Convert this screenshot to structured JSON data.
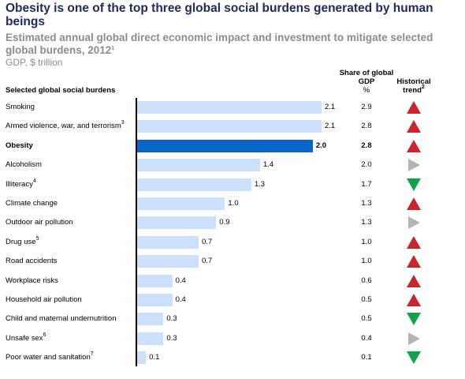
{
  "header": {
    "title": "Obesity is one of the top three global social burdens generated by human beings",
    "subtitle": "Estimated annual global direct economic impact and investment to mitigate selected global burdens, 2012",
    "subtitle_note": "1",
    "units": "GDP, $ trillion",
    "category_header": "Selected global social burdens",
    "share_header": "Share of global GDP",
    "share_unit": "%",
    "trend_header": "Historical trend",
    "trend_note": "2"
  },
  "colors": {
    "bar": "#cce0fb",
    "bar_highlight": "#0a65c8",
    "trend_up": "#c9252c",
    "trend_down": "#0fa24b",
    "trend_flat": "#b4b4b4"
  },
  "chart_data": {
    "type": "bar",
    "orientation": "horizontal",
    "xlim": [
      0,
      2.1
    ],
    "categories": [
      {
        "label": "Smoking",
        "note": "",
        "value_label": "2.1",
        "share_label": "2.9",
        "trend": "up"
      },
      {
        "label": "Armed violence, war, and terrorism",
        "note": "3",
        "value_label": "2.1",
        "share_label": "2.8",
        "trend": "up"
      },
      {
        "label": "Obesity",
        "note": "",
        "value_label": "2.0",
        "share_label": "2.8",
        "trend": "up",
        "highlight": true
      },
      {
        "label": "Alcoholism",
        "note": "",
        "value_label": "1.4",
        "share_label": "2.0",
        "trend": "flat"
      },
      {
        "label": "Illiteracy",
        "note": "4",
        "value_label": "1.3",
        "share_label": "1.7",
        "trend": "down"
      },
      {
        "label": "Climate change",
        "note": "",
        "value_label": "1.0",
        "share_label": "1.3",
        "trend": "up"
      },
      {
        "label": "Outdoor air pollution",
        "note": "",
        "value_label": "0.9",
        "share_label": "1.3",
        "trend": "flat"
      },
      {
        "label": "Drug use",
        "note": "5",
        "value_label": "0.7",
        "share_label": "1.0",
        "trend": "up"
      },
      {
        "label": "Road accidents",
        "note": "",
        "value_label": "0.7",
        "share_label": "1.0",
        "trend": "up"
      },
      {
        "label": "Workplace risks",
        "note": "",
        "value_label": "0.4",
        "share_label": "0.6",
        "trend": "up"
      },
      {
        "label": "Household air pollution",
        "note": "",
        "value_label": "0.4",
        "share_label": "0.5",
        "trend": "up"
      },
      {
        "label": "Child and maternal undernutrition",
        "note": "",
        "value_label": "0.3",
        "share_label": "0.5",
        "trend": "down"
      },
      {
        "label": "Unsafe sex",
        "note": "6",
        "value_label": "0.3",
        "share_label": "0.4",
        "trend": "flat"
      },
      {
        "label": "Poor water and sanitation",
        "note": "7",
        "value_label": "0.1",
        "share_label": "0.1",
        "trend": "down"
      }
    ]
  }
}
